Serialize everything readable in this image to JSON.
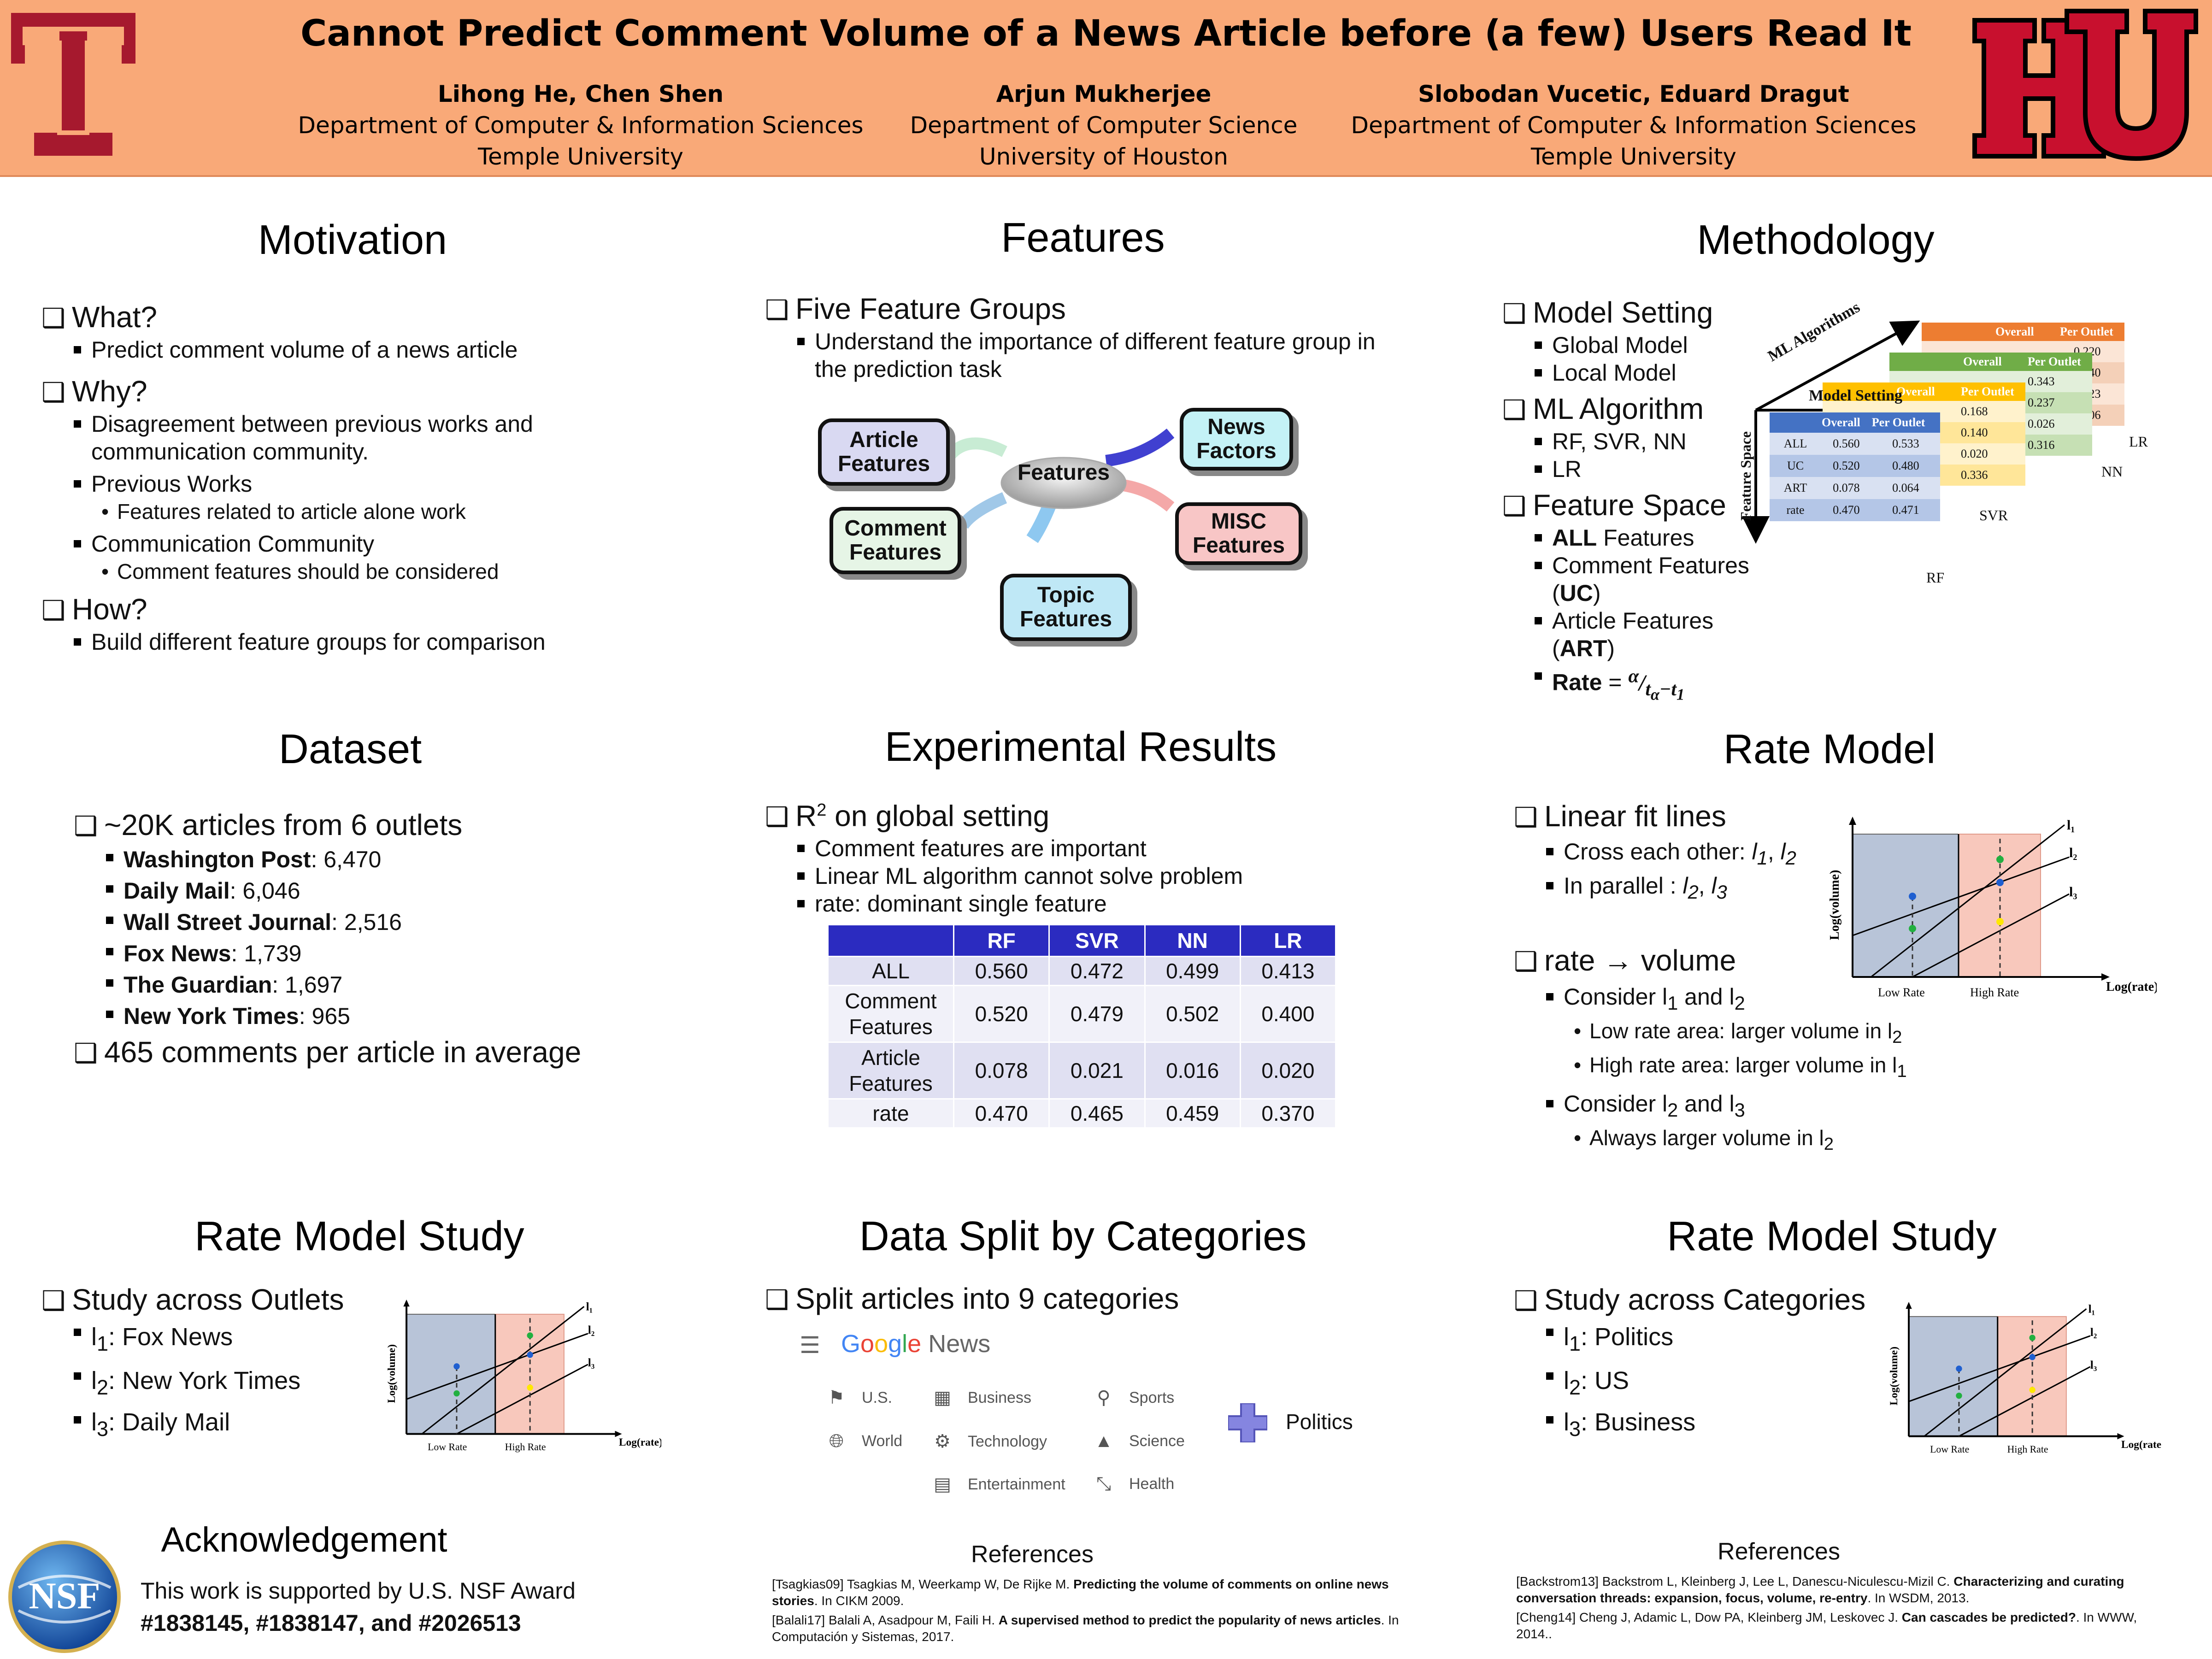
{
  "header": {
    "title": "Cannot Predict Comment Volume of a News Article before (a few) Users Read It",
    "authors": [
      {
        "names": "Lihong He,    Chen Shen",
        "dept": "Department of Computer & Information Sciences",
        "uni": "Temple University"
      },
      {
        "names": "Arjun Mukherjee",
        "dept": "Department of Computer Science",
        "uni": "University of Houston"
      },
      {
        "names": "Slobodan Vucetic,   Eduard Dragut",
        "dept": "Department of Computer & Information Sciences",
        "uni": "Temple University"
      }
    ],
    "logo_left_icon": "temple-logo-icon",
    "logo_right_icon": "uh-logo-icon",
    "colors": {
      "header_bg": "#f9a978",
      "temple_red": "#a6192e",
      "uh_red": "#c8102e"
    }
  },
  "motivation": {
    "title": "Motivation",
    "what": "What?",
    "what_1": "Predict comment volume of a news article",
    "why": "Why?",
    "why_1": "Disagreement between previous works and communication community.",
    "why_2": "Previous Works",
    "why_2a": "Features related to article alone work",
    "why_3": "Communication Community",
    "why_3a": "Comment features should be considered",
    "how": "How?",
    "how_1": "Build different feature groups for comparison"
  },
  "features": {
    "title": "Features",
    "b1": "Five Feature Groups",
    "b1a": "Understand the importance of different feature group in the prediction task",
    "center": "Features",
    "article": "Article Features",
    "comment": "Comment Features",
    "topic": "Topic Features",
    "news": "News Factors",
    "misc": "MISC Features"
  },
  "methodology": {
    "title": "Methodology",
    "model_setting": "Model Setting",
    "global": "Global Model",
    "local": "Local Model",
    "ml_algo": "ML Algorithm",
    "ml_1": "RF, SVR, NN",
    "ml_2": "LR",
    "feature_space": "Feature Space",
    "fs_1_bold": "ALL",
    "fs_1": " Features",
    "fs_2": "Comment Features (",
    "fs_2_bold": "UC",
    "fs_2_end": ")",
    "fs_3": "Article Features  (",
    "fs_3_bold": "ART",
    "fs_3_end": ")",
    "fs_4_bold": "Rate",
    "fs_4": " = ",
    "cube": {
      "ml_axis": "ML Algorithms",
      "model_axis": "Model Setting",
      "fs_axis": "Feature Space",
      "header": [
        "Overall",
        "Per Outlet"
      ],
      "rows": [
        [
          "ALL",
          "0.560",
          "0.533"
        ],
        [
          "UC",
          "0.520",
          "0.480"
        ],
        [
          "ART",
          "0.078",
          "0.064"
        ],
        [
          "rate",
          "0.470",
          "0.471"
        ]
      ],
      "layers": [
        "RF",
        "SVR",
        "NN",
        "LR"
      ],
      "svr_vals": [
        "0.168",
        "0.140",
        "0.020",
        "0.336"
      ],
      "nn_vals": [
        "0.343",
        "0.237",
        "0.026",
        "0.316"
      ],
      "lr_vals": [
        "0.220",
        "0.140",
        "0.023",
        "0.006"
      ]
    }
  },
  "dataset": {
    "title": "Dataset",
    "b1": "~20K articles from 6 outlets",
    "outlets": [
      {
        "name": "Washington Post",
        "count": ": 6,470"
      },
      {
        "name": "Daily Mail",
        "count": ": 6,046"
      },
      {
        "name": "Wall Street Journal",
        "count": ": 2,516"
      },
      {
        "name": "Fox News",
        "count": ": 1,739"
      },
      {
        "name": "The Guardian",
        "count": ": 1,697"
      },
      {
        "name": "New York Times",
        "count": ": 965"
      }
    ],
    "b2": "465 comments per article in average"
  },
  "results": {
    "title": "Experimental Results",
    "b1_pre": "R",
    "b1_sup": "2",
    "b1_post": " on global setting",
    "b1a": "Comment features are important",
    "b1b": "Linear ML algorithm cannot solve problem",
    "b1c": "rate: dominant single feature",
    "table": {
      "header": [
        "",
        "RF",
        "SVR",
        "NN",
        "LR"
      ],
      "rows": [
        [
          "ALL",
          "0.560",
          "0.472",
          "0.499",
          "0.413"
        ],
        [
          "Comment Features",
          "0.520",
          "0.479",
          "0.502",
          "0.400"
        ],
        [
          "Article Features",
          "0.078",
          "0.021",
          "0.016",
          "0.020"
        ],
        [
          "rate",
          "0.470",
          "0.465",
          "0.459",
          "0.370"
        ]
      ]
    }
  },
  "rate_model": {
    "title": "Rate Model",
    "b1": "Linear fit lines",
    "b1a_pre": "Cross each other: ",
    "b1a_l": "l",
    "b1a_s1": "1",
    "b1a_sep": ", ",
    "b1a_s2": "2",
    "b1b_pre": "In parallel : ",
    "b1b_s1": "2",
    "b1b_s2": "3",
    "b2": "rate → volume",
    "b2a_pre": "Consider l",
    "b2a_s1": "1",
    "b2a_mid": " and l",
    "b2a_s2": "2",
    "b2a_i": "Low rate area: larger volume in l",
    "b2a_i_s": "2",
    "b2a_ii": "High rate area: larger volume in l",
    "b2a_ii_s": "1",
    "b2b_pre": "Consider l",
    "b2b_s1": "2",
    "b2b_mid": " and l",
    "b2b_s2": "3",
    "b2b_i": "Always larger volume in l",
    "b2b_i_s": "2",
    "chart": {
      "ylabel": "Log(volume)",
      "xlabel": "Log(rate)",
      "low": "Low Rate",
      "high": "High Rate",
      "l1": "l₁",
      "l2": "l₂",
      "l3": "l₃"
    }
  },
  "study_outlets": {
    "title": "Rate Model Study",
    "b1": "Study across Outlets",
    "l1": "l",
    "l1s": "1",
    "l1t": ": Fox News",
    "l2s": "2",
    "l2t": ": New York Times",
    "l3s": "3",
    "l3t": ": Daily Mail",
    "chart": {
      "ylabel": "Log(volume)",
      "xlabel": "Log(rate)",
      "low": "Low Rate",
      "high": "High Rate"
    }
  },
  "data_split": {
    "title": "Data Split by Categories",
    "b1": "Split articles into 9 categories",
    "google": [
      "G",
      "o",
      "o",
      "g",
      "l",
      "e"
    ],
    "news_word": " News",
    "categories": [
      "U.S.",
      "World",
      "Business",
      "Technology",
      "Entertainment",
      "Sports",
      "Science",
      "Health"
    ],
    "extra": "Politics"
  },
  "study_categories": {
    "title": "Rate Model Study",
    "b1": "Study across Categories",
    "l1t": ": Politics",
    "l2t": ": US",
    "l3t": ": Business",
    "chart": {
      "ylabel": "Log(volume)",
      "xlabel": "Log(rate",
      "low": "Low Rate",
      "high": "High Rate"
    }
  },
  "ack": {
    "title": "Acknowledgement",
    "line1": "This work is supported by U.S. NSF Award",
    "line2": "#1838145, #1838147, and #2026513",
    "logo": "NSF"
  },
  "refs_mid": {
    "title": "References",
    "r1_pre": "[Tsagkias09] Tsagkias M, Weerkamp W, De Rijke M. ",
    "r1_bold": "Predicting the volume of comments on online news stories",
    "r1_post": ". In CIKM 2009.",
    "r2_pre": "[Balali17] Balali A, Asadpour M, Faili H. ",
    "r2_bold": "A supervised method to predict the popularity of news articles",
    "r2_post": ". In Computación y Sistemas, 2017."
  },
  "refs_right": {
    "title": "References",
    "r1_pre": "[Backstrom13] Backstrom L, Kleinberg J, Lee L, Danescu-Niculescu-Mizil C. ",
    "r1_bold": "Characterizing and curating conversation threads: expansion, focus, volume, re-entry",
    "r1_post": ". In WSDM, 2013.",
    "r2_pre": "[Cheng14] Cheng J, Adamic L, Dow PA, Kleinberg JM, Leskovec J. ",
    "r2_bold": "Can cascades be predicted?",
    "r2_post": ". In WWW, 2014.."
  }
}
